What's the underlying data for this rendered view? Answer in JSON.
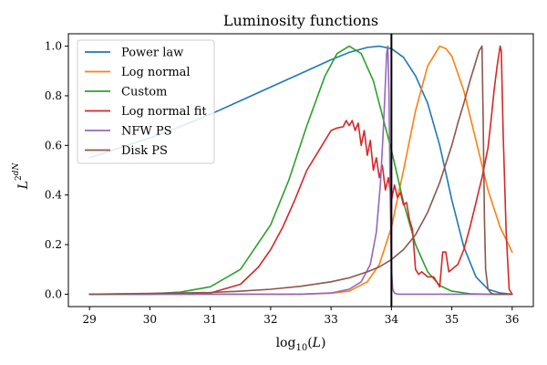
{
  "chart_data": {
    "type": "line",
    "title": "Luminosity functions",
    "xlabel": "log₁₀(L)",
    "ylabel": "L² dN/dL",
    "xlim": [
      28.65,
      36.35
    ],
    "ylim": [
      -0.05,
      1.05
    ],
    "xticks": [
      29,
      30,
      31,
      32,
      33,
      34,
      35,
      36
    ],
    "yticks": [
      0.0,
      0.2,
      0.4,
      0.6,
      0.8,
      1.0
    ],
    "xtick_labels": [
      "29",
      "30",
      "31",
      "32",
      "33",
      "34",
      "35",
      "36"
    ],
    "ytick_labels": [
      "0.0",
      "0.2",
      "0.4",
      "0.6",
      "0.8",
      "1.0"
    ],
    "grid": false,
    "legend_position": "top-left",
    "vertical_line": {
      "x": 34.0,
      "color": "#000000"
    },
    "series": [
      {
        "name": "Power law",
        "color": "#1f77b4",
        "x": [
          29.0,
          29.5,
          30.0,
          30.5,
          31.0,
          31.5,
          32.0,
          32.5,
          33.0,
          33.3,
          33.6,
          33.8,
          34.0,
          34.2,
          34.4,
          34.6,
          34.8,
          35.0,
          35.2,
          35.4,
          35.6,
          35.8,
          36.0
        ],
        "y": [
          0.55,
          0.59,
          0.63,
          0.675,
          0.725,
          0.78,
          0.835,
          0.89,
          0.945,
          0.975,
          0.995,
          1.0,
          0.99,
          0.955,
          0.88,
          0.77,
          0.6,
          0.38,
          0.19,
          0.07,
          0.02,
          0.005,
          0.0
        ]
      },
      {
        "name": "Log normal",
        "color": "#ff7f0e",
        "x": [
          29.0,
          31.0,
          32.0,
          32.5,
          33.0,
          33.3,
          33.6,
          33.8,
          34.0,
          34.2,
          34.4,
          34.6,
          34.8,
          34.9,
          35.0,
          35.2,
          35.4,
          35.6,
          35.8,
          36.0
        ],
        "y": [
          0.0,
          0.0,
          0.0,
          0.0,
          0.004,
          0.012,
          0.05,
          0.12,
          0.27,
          0.5,
          0.74,
          0.92,
          1.0,
          0.99,
          0.96,
          0.82,
          0.62,
          0.42,
          0.27,
          0.17
        ]
      },
      {
        "name": "Custom",
        "color": "#2ca02c",
        "x": [
          29.0,
          30.0,
          30.5,
          31.0,
          31.5,
          32.0,
          32.3,
          32.6,
          32.9,
          33.1,
          33.3,
          33.5,
          33.7,
          34.0,
          34.2,
          34.4,
          34.6,
          34.8,
          35.0,
          35.3,
          35.6,
          36.0
        ],
        "y": [
          0.0,
          0.002,
          0.008,
          0.03,
          0.1,
          0.28,
          0.46,
          0.68,
          0.88,
          0.97,
          1.0,
          0.97,
          0.86,
          0.58,
          0.37,
          0.2,
          0.09,
          0.035,
          0.012,
          0.002,
          0.0,
          0.0
        ]
      },
      {
        "name": "Log normal fit",
        "color": "#d62728",
        "x": [
          29.0,
          30.0,
          31.0,
          31.5,
          31.8,
          32.0,
          32.2,
          32.4,
          32.6,
          32.8,
          33.0,
          33.1,
          33.2,
          33.25,
          33.3,
          33.35,
          33.4,
          33.45,
          33.5,
          33.55,
          33.6,
          33.65,
          33.7,
          33.75,
          33.8,
          33.85,
          33.9,
          33.95,
          34.0,
          34.05,
          34.1,
          34.15,
          34.2,
          34.25,
          34.3,
          34.35,
          34.4,
          34.45,
          34.5,
          34.6,
          34.7,
          34.8,
          34.85,
          34.9,
          34.95,
          35.0,
          35.1,
          35.2,
          35.3,
          35.4,
          35.5,
          35.6,
          35.65,
          35.7,
          35.75,
          35.8,
          35.82,
          35.85,
          35.9,
          35.95,
          36.0
        ],
        "y": [
          0.0,
          0.0,
          0.005,
          0.04,
          0.11,
          0.18,
          0.27,
          0.38,
          0.5,
          0.58,
          0.66,
          0.67,
          0.675,
          0.7,
          0.68,
          0.7,
          0.66,
          0.69,
          0.6,
          0.66,
          0.56,
          0.62,
          0.5,
          0.55,
          0.47,
          0.52,
          0.42,
          0.47,
          0.38,
          0.44,
          0.39,
          0.41,
          0.36,
          0.37,
          0.3,
          0.26,
          0.1,
          0.08,
          0.09,
          0.07,
          0.07,
          0.03,
          0.17,
          0.17,
          0.09,
          0.1,
          0.12,
          0.18,
          0.27,
          0.37,
          0.47,
          0.59,
          0.7,
          0.82,
          0.92,
          1.0,
          0.98,
          0.65,
          0.25,
          0.02,
          0.0
        ]
      },
      {
        "name": "NFW PS",
        "color": "#9467bd",
        "x": [
          29.0,
          31.0,
          32.0,
          32.5,
          33.0,
          33.3,
          33.5,
          33.65,
          33.75,
          33.82,
          33.87,
          33.9,
          33.92,
          33.94,
          33.96,
          33.98,
          34.0,
          34.02,
          34.05,
          34.1,
          34.5,
          35.0,
          36.0
        ],
        "y": [
          0.0,
          0.0,
          0.0,
          0.0,
          0.005,
          0.02,
          0.05,
          0.12,
          0.25,
          0.45,
          0.68,
          0.85,
          0.97,
          1.0,
          0.8,
          0.4,
          0.1,
          0.02,
          0.005,
          0.0,
          0.0,
          0.0,
          0.0
        ]
      },
      {
        "name": "Disk PS",
        "color": "#8c564b",
        "x": [
          29.0,
          30.0,
          31.0,
          31.5,
          32.0,
          32.5,
          33.0,
          33.3,
          33.6,
          33.8,
          34.0,
          34.2,
          34.4,
          34.6,
          34.8,
          35.0,
          35.1,
          35.2,
          35.3,
          35.4,
          35.45,
          35.5,
          35.52,
          35.54,
          35.56,
          35.6,
          35.65,
          35.7,
          35.8,
          36.0
        ],
        "y": [
          0.0,
          0.003,
          0.007,
          0.012,
          0.02,
          0.032,
          0.05,
          0.066,
          0.09,
          0.11,
          0.14,
          0.18,
          0.24,
          0.33,
          0.45,
          0.6,
          0.69,
          0.77,
          0.86,
          0.94,
          0.98,
          1.0,
          0.7,
          0.3,
          0.1,
          0.02,
          0.005,
          0.0,
          0.0,
          0.0
        ]
      }
    ]
  }
}
